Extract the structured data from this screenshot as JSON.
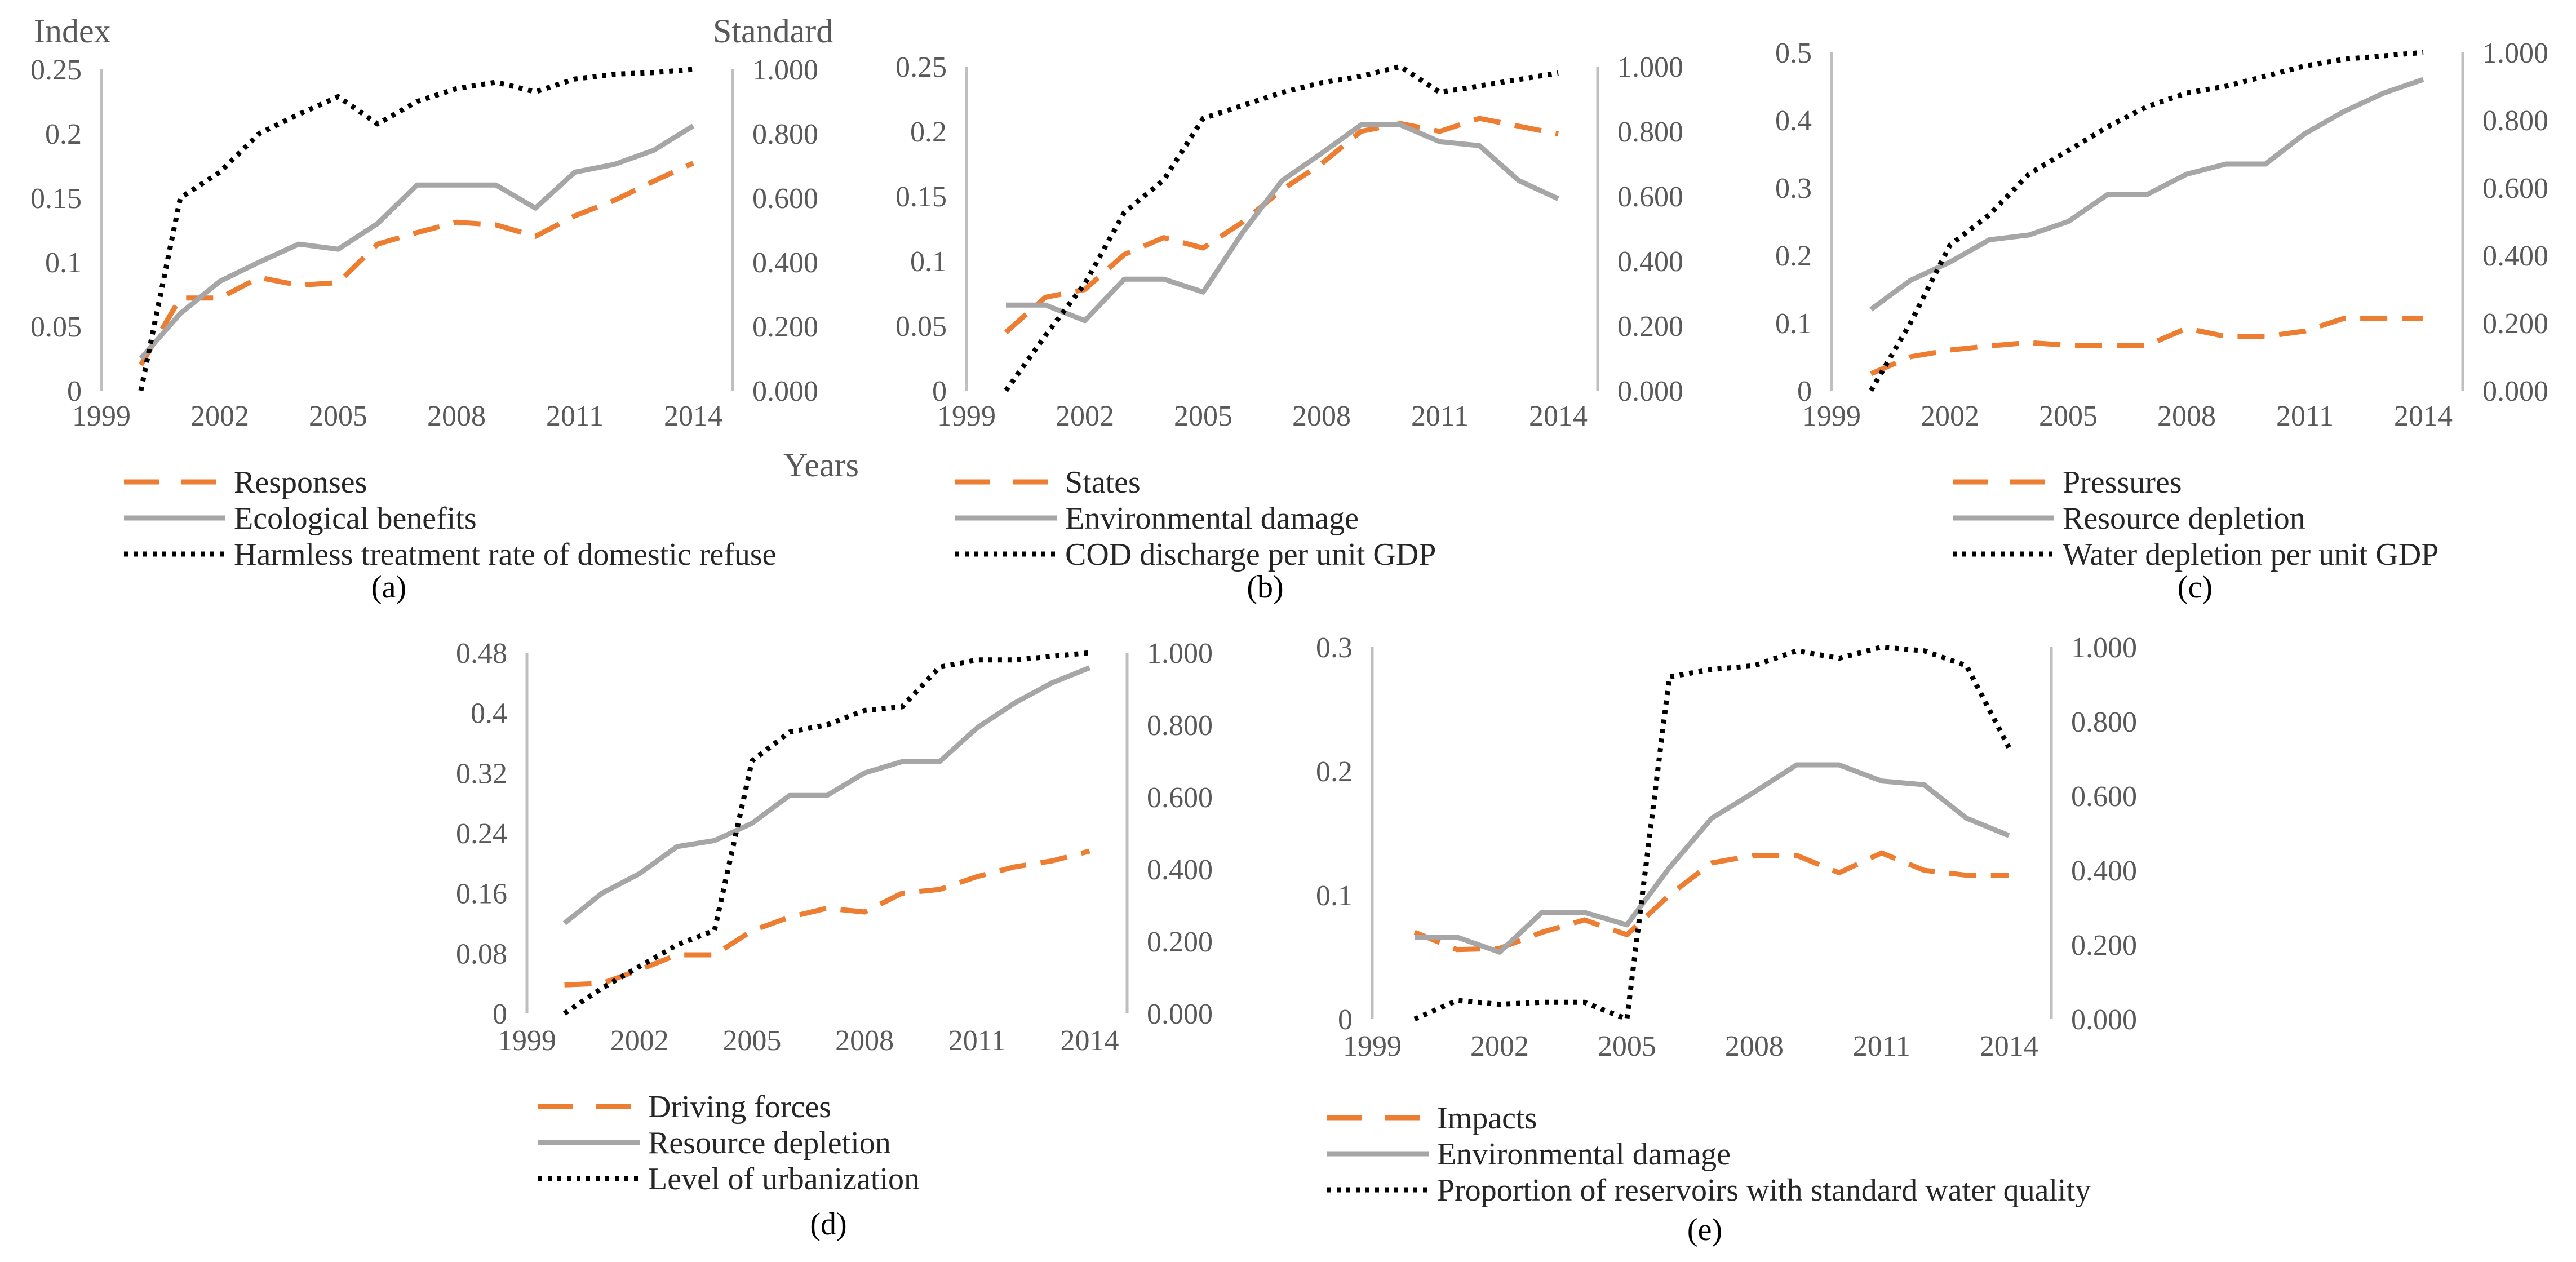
{
  "colors": {
    "primary": "#ED7D31",
    "secondary": "#A6A6A6",
    "standard": "#000000",
    "axis": "#BFBFBF"
  },
  "chart_data": [
    {
      "id": "a",
      "type": "line",
      "caption": "(a)",
      "left_axis_title": "Index",
      "right_axis_title": "Standard",
      "x_axis_title": "Years",
      "x": [
        2000,
        2001,
        2002,
        2003,
        2004,
        2005,
        2006,
        2007,
        2008,
        2009,
        2010,
        2011,
        2012,
        2013,
        2014
      ],
      "xticks": [
        1999,
        2002,
        2005,
        2008,
        2011,
        2014
      ],
      "ylim": [
        0,
        0.25
      ],
      "yticks": [
        "0",
        "0.05",
        "0.1",
        "0.15",
        "0.2",
        "0.25"
      ],
      "y2lim": [
        0,
        1
      ],
      "y2ticks": [
        "0.000",
        "0.200",
        "0.400",
        "0.600",
        "0.800",
        "1.000"
      ],
      "series": [
        {
          "name": "Responses",
          "axis": "left",
          "style": "dashed",
          "values": [
            0.02,
            0.072,
            0.072,
            0.088,
            0.082,
            0.084,
            0.114,
            0.123,
            0.131,
            0.129,
            0.12,
            0.136,
            0.148,
            0.163,
            0.177
          ]
        },
        {
          "name": "Ecological benefits",
          "axis": "left",
          "style": "solid",
          "values": [
            0.025,
            0.06,
            0.085,
            0.1,
            0.114,
            0.11,
            0.13,
            0.16,
            0.16,
            0.16,
            0.142,
            0.17,
            0.176,
            0.187,
            0.206
          ]
        },
        {
          "name": "Harmless treatment rate of domestic refuse",
          "axis": "right",
          "style": "dotted",
          "values": [
            0.0,
            0.6,
            0.68,
            0.8,
            0.86,
            0.915,
            0.83,
            0.9,
            0.94,
            0.96,
            0.93,
            0.97,
            0.985,
            0.99,
            1.0
          ]
        }
      ]
    },
    {
      "id": "b",
      "type": "line",
      "caption": "(b)",
      "x": [
        2000,
        2001,
        2002,
        2003,
        2004,
        2005,
        2006,
        2007,
        2008,
        2009,
        2010,
        2011,
        2012,
        2013,
        2014
      ],
      "xticks": [
        1999,
        2002,
        2005,
        2008,
        2011,
        2014
      ],
      "ylim": [
        0,
        0.25
      ],
      "yticks": [
        "0",
        "0.05",
        "0.1",
        "0.15",
        "0.2",
        "0.25"
      ],
      "y2lim": [
        0,
        1
      ],
      "y2ticks": [
        "0.000",
        "0.200",
        "0.400",
        "0.600",
        "0.800",
        "1.000"
      ],
      "series": [
        {
          "name": "States",
          "axis": "left",
          "style": "dashed",
          "values": [
            0.045,
            0.072,
            0.078,
            0.105,
            0.118,
            0.11,
            0.13,
            0.155,
            0.175,
            0.2,
            0.206,
            0.2,
            0.21,
            0.204,
            0.198
          ]
        },
        {
          "name": "Environmental damage",
          "axis": "left",
          "style": "solid",
          "values": [
            0.066,
            0.066,
            0.054,
            0.086,
            0.086,
            0.076,
            0.122,
            0.162,
            0.183,
            0.205,
            0.205,
            0.192,
            0.189,
            0.162,
            0.148
          ]
        },
        {
          "name": "COD discharge per unit GDP",
          "axis": "right",
          "style": "dotted",
          "values": [
            0.0,
            0.17,
            0.33,
            0.55,
            0.65,
            0.84,
            0.88,
            0.92,
            0.95,
            0.97,
            1.0,
            0.92,
            0.94,
            0.96,
            0.98
          ]
        }
      ]
    },
    {
      "id": "c",
      "type": "line",
      "caption": "(c)",
      "x": [
        2000,
        2001,
        2002,
        2003,
        2004,
        2005,
        2006,
        2007,
        2008,
        2009,
        2010,
        2011,
        2012,
        2013,
        2014
      ],
      "xticks": [
        1999,
        2002,
        2005,
        2008,
        2011,
        2014
      ],
      "ylim": [
        0,
        0.5
      ],
      "yticks": [
        "0",
        "0.1",
        "0.2",
        "0.3",
        "0.4",
        "0.5"
      ],
      "y2lim": [
        0,
        1
      ],
      "y2ticks": [
        "0.000",
        "0.200",
        "0.400",
        "0.600",
        "0.800",
        "1.000"
      ],
      "series": [
        {
          "name": "Pressures",
          "axis": "left",
          "style": "dashed",
          "values": [
            0.025,
            0.05,
            0.06,
            0.066,
            0.071,
            0.067,
            0.067,
            0.067,
            0.092,
            0.08,
            0.08,
            0.088,
            0.107,
            0.107,
            0.107
          ]
        },
        {
          "name": "Resource depletion",
          "axis": "left",
          "style": "solid",
          "values": [
            0.12,
            0.163,
            0.19,
            0.223,
            0.23,
            0.25,
            0.29,
            0.29,
            0.32,
            0.335,
            0.335,
            0.38,
            0.413,
            0.44,
            0.46
          ]
        },
        {
          "name": "Water depletion per unit GDP",
          "axis": "right",
          "style": "dotted",
          "values": [
            0.0,
            0.2,
            0.43,
            0.52,
            0.64,
            0.71,
            0.78,
            0.84,
            0.88,
            0.9,
            0.93,
            0.96,
            0.98,
            0.99,
            1.0
          ]
        }
      ]
    },
    {
      "id": "d",
      "type": "line",
      "caption": "(d)",
      "x": [
        2000,
        2001,
        2002,
        2003,
        2004,
        2005,
        2006,
        2007,
        2008,
        2009,
        2010,
        2011,
        2012,
        2013,
        2014
      ],
      "xticks": [
        1999,
        2002,
        2005,
        2008,
        2011,
        2014
      ],
      "ylim": [
        0,
        0.48
      ],
      "yticks": [
        "0",
        "0.08",
        "0.16",
        "0.24",
        "0.32",
        "0.4",
        "0.48"
      ],
      "y2lim": [
        0,
        1
      ],
      "y2ticks": [
        "0.000",
        "0.200",
        "0.400",
        "0.600",
        "0.800",
        "1.000"
      ],
      "series": [
        {
          "name": "Driving forces",
          "axis": "left",
          "style": "dashed",
          "values": [
            0.038,
            0.04,
            0.058,
            0.078,
            0.078,
            0.11,
            0.128,
            0.14,
            0.135,
            0.16,
            0.165,
            0.182,
            0.195,
            0.203,
            0.216
          ]
        },
        {
          "name": "Resource depletion",
          "axis": "left",
          "style": "solid",
          "values": [
            0.12,
            0.16,
            0.186,
            0.222,
            0.23,
            0.253,
            0.29,
            0.29,
            0.32,
            0.335,
            0.335,
            0.38,
            0.413,
            0.44,
            0.46
          ]
        },
        {
          "name": "Level of urbanization",
          "axis": "right",
          "style": "dotted",
          "values": [
            0.0,
            0.07,
            0.13,
            0.19,
            0.23,
            0.7,
            0.78,
            0.8,
            0.84,
            0.85,
            0.96,
            0.98,
            0.98,
            0.99,
            1.0
          ]
        }
      ]
    },
    {
      "id": "e",
      "type": "line",
      "caption": "(e)",
      "x": [
        2000,
        2001,
        2002,
        2003,
        2004,
        2005,
        2006,
        2007,
        2008,
        2009,
        2010,
        2011,
        2012,
        2013,
        2014
      ],
      "xticks": [
        1999,
        2002,
        2005,
        2008,
        2011,
        2014
      ],
      "ylim": [
        0,
        0.3
      ],
      "yticks": [
        "0",
        "0.1",
        "0.2",
        "0.3"
      ],
      "y2lim": [
        0,
        1
      ],
      "y2ticks": [
        "0.000",
        "0.200",
        "0.400",
        "0.600",
        "0.800",
        "1.000"
      ],
      "series": [
        {
          "name": "Impacts",
          "axis": "left",
          "style": "dashed",
          "values": [
            0.07,
            0.056,
            0.057,
            0.07,
            0.08,
            0.068,
            0.1,
            0.126,
            0.132,
            0.132,
            0.118,
            0.134,
            0.12,
            0.116,
            0.116
          ]
        },
        {
          "name": "Environmental damage",
          "axis": "left",
          "style": "solid",
          "values": [
            0.066,
            0.066,
            0.054,
            0.086,
            0.086,
            0.076,
            0.122,
            0.162,
            0.183,
            0.205,
            0.205,
            0.192,
            0.189,
            0.162,
            0.148
          ]
        },
        {
          "name": "Proportion of reservoirs with standard water quality",
          "axis": "right",
          "style": "dotted",
          "values": [
            0.0,
            0.05,
            0.04,
            0.045,
            0.045,
            0.0,
            0.92,
            0.94,
            0.95,
            0.99,
            0.97,
            1.0,
            0.99,
            0.95,
            0.73
          ]
        }
      ]
    }
  ]
}
